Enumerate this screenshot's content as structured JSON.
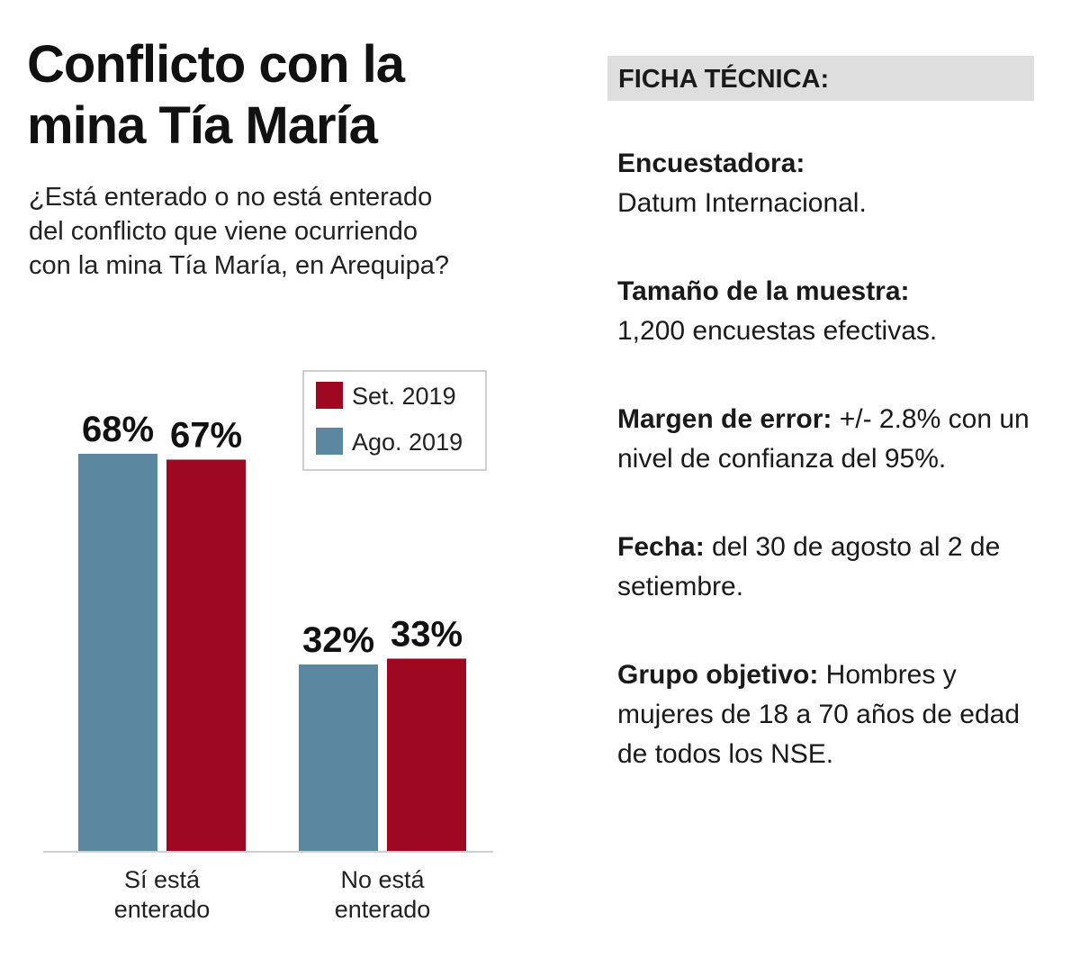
{
  "title_line1": "Conflicto con la",
  "title_line2": "mina Tía María",
  "question": "¿Está enterado o no está enterado del conflicto que viene ocurriendo con la mina Tía María, en Arequipa?",
  "chart_data": {
    "type": "bar",
    "categories": [
      "Sí está enterado",
      "No está enterado"
    ],
    "series": [
      {
        "name": "Ago. 2019",
        "values": [
          68,
          32
        ],
        "labels": [
          "68%",
          "32%"
        ],
        "color": "#5b87a0"
      },
      {
        "name": "Set. 2019",
        "values": [
          67,
          33
        ],
        "labels": [
          "67%",
          "33%"
        ],
        "color": "#9e0820"
      }
    ],
    "legend": [
      {
        "name": "Set. 2019",
        "color": "#9e0820"
      },
      {
        "name": "Ago. 2019",
        "color": "#5b87a0"
      }
    ],
    "legend_position": "top-right",
    "ylim": [
      0,
      100
    ],
    "grid": false
  },
  "ficha": {
    "header": "FICHA TÉCNICA:",
    "items": [
      {
        "label": "Encuestadora:",
        "text": "Datum Internacional."
      },
      {
        "label": "Tamaño de la muestra:",
        "text": "1,200 encuestas efectivas."
      },
      {
        "label": "Margen de error:",
        "text": "+/- 2.8% con un nivel de confianza del 95%."
      },
      {
        "label": "Fecha:",
        "text": "del 30 de agosto al 2 de setiembre."
      },
      {
        "label": "Grupo objetivo:",
        "text": "Hombres y mujeres de 18 a 70 años de edad de todos los NSE."
      }
    ]
  }
}
